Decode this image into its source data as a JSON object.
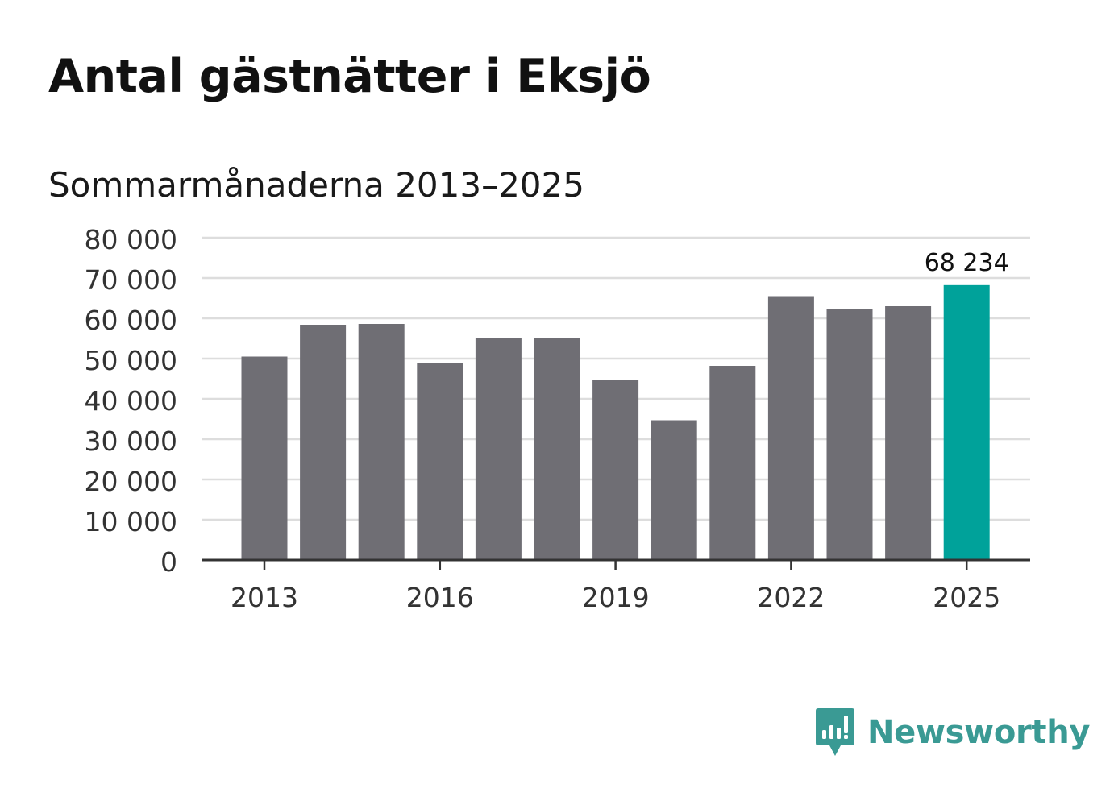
{
  "title": "Antal gästnätter i Eksjö",
  "subtitle": "Sommarmånaderna 2013–2025",
  "brand": {
    "name": "Newsworthy",
    "color": "#3a9a94",
    "icon": "newsworthy-logo-icon"
  },
  "colors": {
    "bar": "#6f6e74",
    "highlight": "#00a29a",
    "grid": "#dddddd",
    "axis": "#333333"
  },
  "chart_data": {
    "type": "bar",
    "categories": [
      "2013",
      "2014",
      "2015",
      "2016",
      "2017",
      "2018",
      "2019",
      "2020",
      "2021",
      "2022",
      "2023",
      "2024",
      "2025"
    ],
    "values": [
      50500,
      58400,
      58600,
      49000,
      55000,
      55000,
      44800,
      34700,
      48200,
      65500,
      62200,
      63000,
      68234
    ],
    "highlight_index": 12,
    "data_labels": [
      {
        "index": 12,
        "text": "68 234"
      }
    ],
    "x_tick_labels": [
      "2013",
      "2016",
      "2019",
      "2022",
      "2025"
    ],
    "y_tick_labels": [
      "0",
      "10 000",
      "20 000",
      "30 000",
      "40 000",
      "50 000",
      "60 000",
      "70 000",
      "80 000"
    ],
    "y_ticks": [
      0,
      10000,
      20000,
      30000,
      40000,
      50000,
      60000,
      70000,
      80000
    ],
    "ylim": [
      0,
      80000
    ],
    "grid": true,
    "legend": false
  }
}
